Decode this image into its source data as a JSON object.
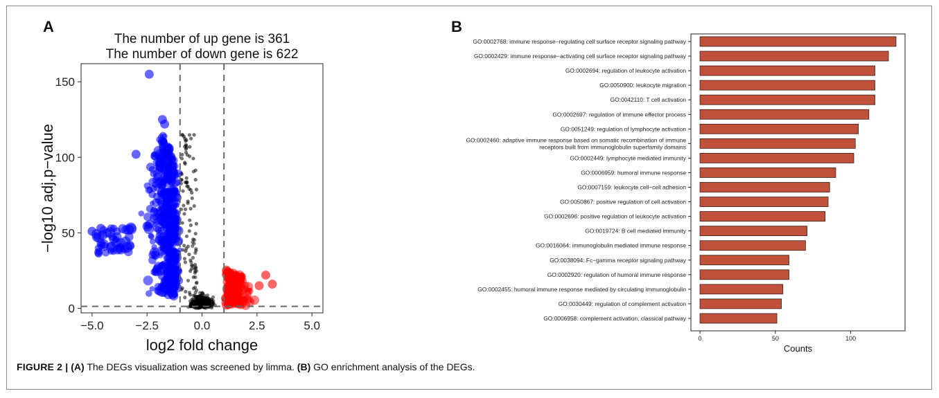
{
  "caption": {
    "figure_label": "FIGURE 2 |",
    "part_a_label": "(A)",
    "part_a_text": " The DEGs visualization was screened by limma. ",
    "part_b_label": "(B)",
    "part_b_text": " GO enrichment analysis of the DEGs."
  },
  "chart_data": [
    {
      "panel": "A",
      "type": "scatter",
      "title_lines": [
        "The number of up gene is 361",
        "The number of down gene is 622"
      ],
      "xlabel": "log2 fold change",
      "ylabel": "−log10 adj.p−value",
      "xlim": [
        -5.5,
        5.5
      ],
      "ylim": [
        -3,
        162
      ],
      "xticks": [
        -5.0,
        -2.5,
        0.0,
        2.5,
        5.0
      ],
      "xtick_labels": [
        "−5.0",
        "−2.5",
        "0.0",
        "2.5",
        "5.0"
      ],
      "yticks": [
        0,
        50,
        100,
        150
      ],
      "ytick_labels": [
        "0",
        "50",
        "100",
        "150"
      ],
      "thresholds": {
        "x": [
          -1,
          1
        ],
        "y": 1.3
      },
      "series": [
        {
          "group": "down",
          "color": "#0000ff",
          "count": 622
        },
        {
          "group": "not significant",
          "color": "#000000"
        },
        {
          "group": "up",
          "color": "#ff0000",
          "count": 361
        }
      ],
      "highlight_points": [
        {
          "x": -2.4,
          "y": 155
        },
        {
          "x": -5.0,
          "y": 51
        },
        {
          "x": -4.6,
          "y": 53
        },
        {
          "x": -1.8,
          "y": 125
        },
        {
          "x": -1.7,
          "y": 122
        },
        {
          "x": -3.0,
          "y": 102
        },
        {
          "x": 3.2,
          "y": 16
        },
        {
          "x": 2.9,
          "y": 22
        },
        {
          "x": 2.6,
          "y": 15
        }
      ],
      "grid": false,
      "legend": "none"
    },
    {
      "panel": "B",
      "type": "bar",
      "orientation": "horizontal",
      "bar_color": "#c1513b",
      "categories": [
        "GO:0002768: immune response−regulating cell surface receptor signaling pathway",
        "GO:0002429: immune response−activating cell surface receptor signaling pathway",
        "GO:0002694: regulation of leukocyte activation",
        "GO:0050900: leukocyte migration",
        "GO:0042110: T cell activation",
        "GO:0002697: regulation of immune effector process",
        "GO:0051249: regulation of lymphocyte activation",
        "GO:0002460: adaptive immune response based on somatic recombination of immune\nreceptors built from immunoglobulin superfamily domains",
        "GO:0002449: lymphocyte mediated immunity",
        "GO:0006959: humoral immune response",
        "GO:0007159: leukocyte cell−cell adhesion",
        "GO:0050867: positive regulation of cell activation",
        "GO:0002696: positive regulation of leukocyte activation",
        "GO:0019724: B cell mediated immunity",
        "GO:0016064: immunoglobulin mediated immune response",
        "GO:0038094: Fc−gamma receptor signaling pathway",
        "GO:0002920: regulation of humoral immune response",
        "GO:0002455: humoral immune response mediated by circulating immunoglobulin",
        "GO:0030449: regulation of complement activation",
        "GO:0006958: complement activation, classical pathway"
      ],
      "values": [
        130,
        125,
        116,
        116,
        116,
        112,
        105,
        103,
        102,
        90,
        86,
        85,
        83,
        71,
        70,
        59,
        59,
        55,
        54,
        51
      ],
      "xlabel": "Counts",
      "xlim": [
        -6,
        136
      ],
      "xticks": [
        0,
        50,
        100
      ],
      "xtick_labels": [
        "0",
        "50",
        "100"
      ],
      "grid": false,
      "legend": "none"
    }
  ],
  "panel_labels": {
    "a": "A",
    "b": "B"
  }
}
